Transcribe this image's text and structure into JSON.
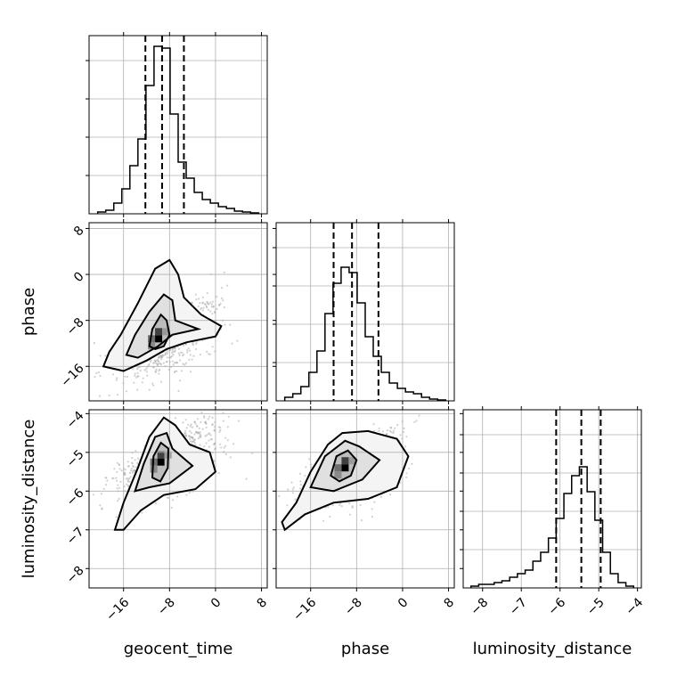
{
  "chart_data": {
    "type": "corner",
    "parameters": [
      "geocent_time",
      "phase",
      "luminosity_distance"
    ],
    "axis_titles": {
      "bottom": [
        "geocent_time",
        "phase",
        "luminosity_distance"
      ],
      "left": [
        "phase",
        "luminosity_distance"
      ]
    },
    "ranges": {
      "geocent_time": [
        -22,
        9
      ],
      "phase": [
        -22,
        9
      ],
      "luminosity_distance": [
        -8.5,
        -3.9
      ]
    },
    "ticks": {
      "geocent_time": [
        "-16",
        "-8",
        "0",
        "8"
      ],
      "phase": [
        "-16",
        "-8",
        "0",
        "8"
      ],
      "luminosity_distance": [
        "-8",
        "-7",
        "-6",
        "-5",
        "-4"
      ]
    },
    "histograms": {
      "geocent_time": {
        "bins": [
          -20.5,
          -19.1,
          -17.7,
          -16.3,
          -14.9,
          -13.5,
          -12.1,
          -10.7,
          -9.3,
          -7.9,
          -6.5,
          -5.1,
          -3.7,
          -2.3,
          -0.9,
          0.5,
          1.9,
          3.3,
          4.7,
          6.1,
          7.5
        ],
        "counts": [
          0.01,
          0.02,
          0.06,
          0.14,
          0.27,
          0.42,
          0.72,
          0.94,
          0.93,
          0.56,
          0.29,
          0.2,
          0.12,
          0.08,
          0.06,
          0.04,
          0.03,
          0.015,
          0.01,
          0.005
        ],
        "quantiles": [
          -12.2,
          -9.3,
          -5.5
        ]
      },
      "phase": {
        "bins": [
          -20.5,
          -19.1,
          -17.7,
          -16.3,
          -14.9,
          -13.5,
          -12.1,
          -10.7,
          -9.3,
          -7.9,
          -6.5,
          -5.1,
          -3.7,
          -2.3,
          -0.9,
          0.5,
          1.9,
          3.3,
          4.7,
          6.1,
          7.5
        ],
        "counts": [
          0.02,
          0.04,
          0.08,
          0.16,
          0.28,
          0.49,
          0.66,
          0.75,
          0.72,
          0.55,
          0.36,
          0.25,
          0.16,
          0.1,
          0.07,
          0.05,
          0.04,
          0.02,
          0.01,
          0.005
        ],
        "quantiles": [
          -12.0,
          -8.8,
          -4.2
        ]
      },
      "luminosity_distance": {
        "bins": [
          -8.3,
          -8.1,
          -7.9,
          -7.7,
          -7.5,
          -7.3,
          -7.1,
          -6.9,
          -6.7,
          -6.5,
          -6.3,
          -6.1,
          -5.9,
          -5.7,
          -5.5,
          -5.3,
          -5.1,
          -4.9,
          -4.7,
          -4.5,
          -4.3,
          -4.1
        ],
        "counts": [
          0.01,
          0.02,
          0.02,
          0.03,
          0.04,
          0.06,
          0.08,
          0.1,
          0.15,
          0.2,
          0.28,
          0.39,
          0.53,
          0.63,
          0.68,
          0.54,
          0.38,
          0.2,
          0.08,
          0.03,
          0.01
        ],
        "quantiles": [
          -6.1,
          -5.45,
          -4.95
        ]
      }
    },
    "pairs": [
      {
        "x": "geocent_time",
        "y": "phase",
        "peak": [
          -9.9,
          -11.2
        ],
        "contours": [
          [
            [
              -19.5,
              -16.0
            ],
            [
              -18.5,
              -13.5
            ],
            [
              -16.5,
              -10.5
            ],
            [
              -13.5,
              -5.0
            ],
            [
              -10.5,
              1.0
            ],
            [
              -8.0,
              2.5
            ],
            [
              -6.5,
              0.0
            ],
            [
              -5.5,
              -4.0
            ],
            [
              -2.5,
              -7.0
            ],
            [
              1.0,
              -9.0
            ],
            [
              0.0,
              -10.8
            ],
            [
              -5.0,
              -11.8
            ],
            [
              -8.5,
              -13.0
            ],
            [
              -12.0,
              -15.0
            ],
            [
              -16.0,
              -16.8
            ]
          ],
          [
            [
              -15.5,
              -14.0
            ],
            [
              -14.0,
              -10.5
            ],
            [
              -11.5,
              -6.5
            ],
            [
              -9.0,
              -3.5
            ],
            [
              -7.5,
              -4.5
            ],
            [
              -7.0,
              -8.0
            ],
            [
              -3.0,
              -9.5
            ],
            [
              -7.5,
              -10.5
            ],
            [
              -10.0,
              -12.5
            ],
            [
              -13.5,
              -14.5
            ]
          ],
          [
            [
              -11.5,
              -12.5
            ],
            [
              -11.0,
              -9.5
            ],
            [
              -9.5,
              -7.0
            ],
            [
              -8.5,
              -8.0
            ],
            [
              -8.0,
              -10.5
            ],
            [
              -9.0,
              -12.5
            ],
            [
              -10.5,
              -13.0
            ]
          ]
        ]
      },
      {
        "x": "geocent_time",
        "y": "luminosity_distance",
        "peak": [
          -9.5,
          -5.25
        ],
        "contours": [
          [
            [
              -17.5,
              -7.0
            ],
            [
              -16.0,
              -6.3
            ],
            [
              -13.5,
              -5.4
            ],
            [
              -11.5,
              -4.6
            ],
            [
              -9.0,
              -4.1
            ],
            [
              -7.0,
              -4.3
            ],
            [
              -4.5,
              -4.8
            ],
            [
              -1.0,
              -5.0
            ],
            [
              0.0,
              -5.5
            ],
            [
              -3.5,
              -5.95
            ],
            [
              -9.0,
              -6.1
            ],
            [
              -13.0,
              -6.5
            ],
            [
              -16.0,
              -7.0
            ]
          ],
          [
            [
              -14.0,
              -6.0
            ],
            [
              -12.5,
              -5.3
            ],
            [
              -10.5,
              -4.6
            ],
            [
              -8.5,
              -4.5
            ],
            [
              -7.5,
              -4.9
            ],
            [
              -4.0,
              -5.35
            ],
            [
              -8.0,
              -5.8
            ],
            [
              -11.5,
              -5.9
            ]
          ],
          [
            [
              -11.0,
              -5.65
            ],
            [
              -10.8,
              -5.1
            ],
            [
              -9.5,
              -4.75
            ],
            [
              -8.2,
              -4.9
            ],
            [
              -8.3,
              -5.4
            ],
            [
              -9.6,
              -5.75
            ]
          ]
        ]
      },
      {
        "x": "phase",
        "y": "luminosity_distance",
        "peak": [
          -10.0,
          -5.4
        ],
        "contours": [
          [
            [
              -21.0,
              -6.8
            ],
            [
              -18.5,
              -6.3
            ],
            [
              -16.0,
              -5.5
            ],
            [
              -13.0,
              -4.8
            ],
            [
              -10.5,
              -4.5
            ],
            [
              -6.0,
              -4.45
            ],
            [
              -1.0,
              -4.65
            ],
            [
              1.0,
              -5.1
            ],
            [
              -1.0,
              -5.9
            ],
            [
              -6.0,
              -6.2
            ],
            [
              -12.0,
              -6.3
            ],
            [
              -17.0,
              -6.6
            ],
            [
              -20.5,
              -7.0
            ]
          ],
          [
            [
              -16.0,
              -5.9
            ],
            [
              -13.5,
              -5.1
            ],
            [
              -10.0,
              -4.7
            ],
            [
              -7.5,
              -4.85
            ],
            [
              -4.0,
              -5.2
            ],
            [
              -7.0,
              -5.7
            ],
            [
              -12.0,
              -6.0
            ]
          ],
          [
            [
              -12.5,
              -5.6
            ],
            [
              -11.5,
              -5.1
            ],
            [
              -9.5,
              -4.95
            ],
            [
              -8.0,
              -5.2
            ],
            [
              -9.0,
              -5.6
            ],
            [
              -11.0,
              -5.75
            ]
          ]
        ]
      }
    ]
  }
}
